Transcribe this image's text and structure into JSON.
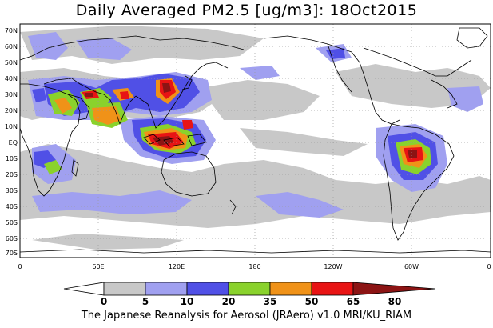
{
  "title": "Daily Averaged PM2.5 [ug/m3]: 18Oct2015",
  "footer": "The Japanese Reanalysis for Aerosol (JRAero) v1.0 MRI/KU_RIAM",
  "map": {
    "lat_labels": [
      "70N",
      "60N",
      "50N",
      "40N",
      "30N",
      "20N",
      "10N",
      "EQ",
      "10S",
      "20S",
      "30S",
      "40S",
      "50S",
      "60S",
      "70S"
    ],
    "lon_labels": [
      "0",
      "60E",
      "120E",
      "180",
      "120W",
      "60W",
      "0"
    ]
  },
  "colorbar": {
    "tick_labels": [
      "0",
      "5",
      "10",
      "20",
      "35",
      "50",
      "65",
      "80"
    ],
    "bins": [
      {
        "range": "0-5",
        "color": "#ffffff"
      },
      {
        "range": "5-10",
        "color": "#c8c8c8"
      },
      {
        "range": "10-20",
        "color": "#a0a0f0"
      },
      {
        "range": "20-35",
        "color": "#5050e6"
      },
      {
        "range": "35-50",
        "color": "#8ad22c"
      },
      {
        "range": "50-65",
        "color": "#f09218"
      },
      {
        "range": "65-80",
        "color": "#e81414"
      },
      {
        "range": ">80",
        "color": "#8c1414"
      }
    ]
  }
}
